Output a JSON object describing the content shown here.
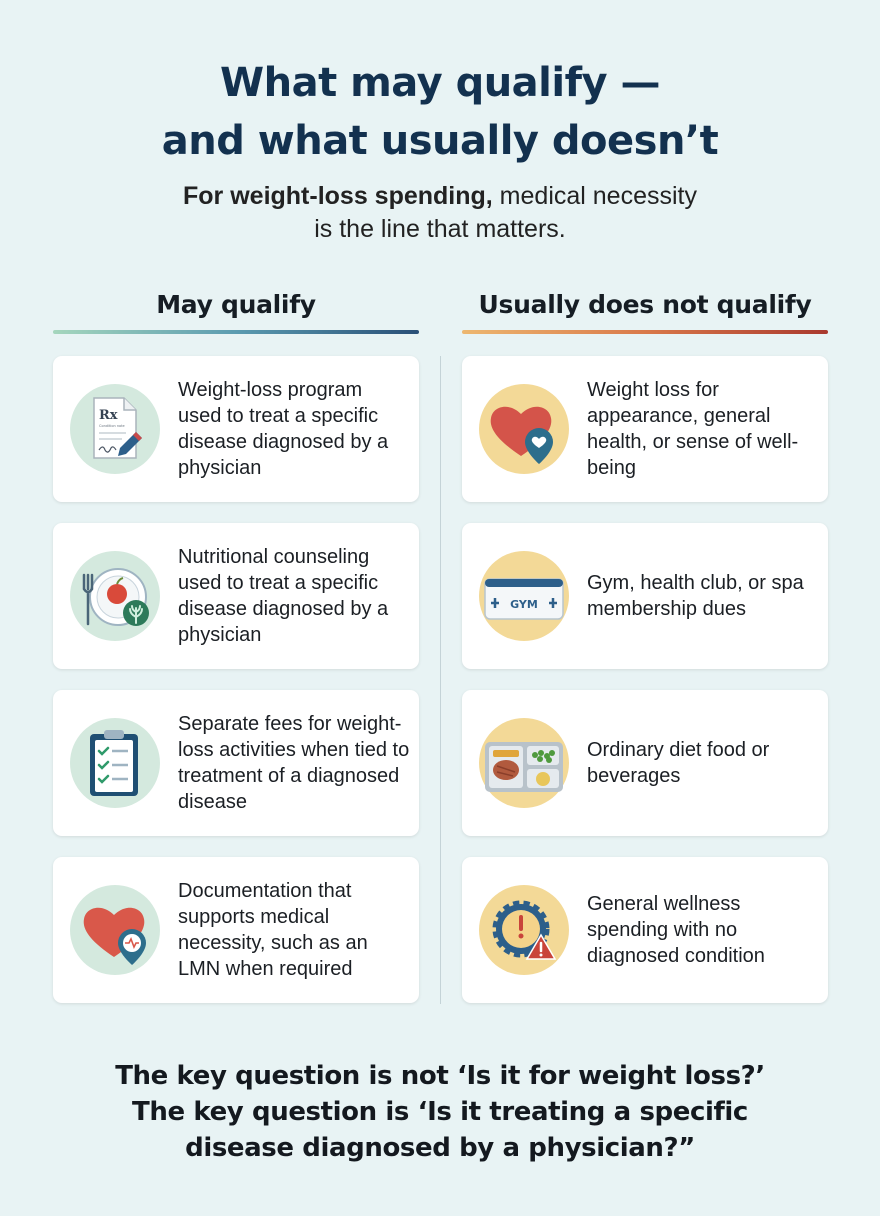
{
  "header": {
    "title_line1": "What may qualify —",
    "title_line2": "and what usually doesn’t",
    "subtitle_bold": "For weight-loss spending,",
    "subtitle_rest": " medical necessity",
    "subtitle_line2": "is the line that matters."
  },
  "left_column": {
    "heading": "May qualify",
    "items": [
      {
        "icon": "prescription-icon",
        "text": "Weight-loss program used to treat a specific disease diagnosed by a physician"
      },
      {
        "icon": "nutrition-plate-icon",
        "text": "Nutritional counseling used to treat a specific disease diagnosed by a physician"
      },
      {
        "icon": "clipboard-checklist-icon",
        "text": "Separate fees for weight-loss activities when tied to treatment of a diagnosed disease"
      },
      {
        "icon": "heart-medical-pin-icon",
        "text": "Documentation that supports medical necessity, such as an LMN when required"
      }
    ],
    "accent_colors": [
      "#a5d6bd",
      "#294f77"
    ]
  },
  "right_column": {
    "heading": "Usually does not qualify",
    "items": [
      {
        "icon": "heart-pin-icon",
        "text": "Weight loss for appearance, general health, or sense of well-being"
      },
      {
        "icon": "gym-card-icon",
        "text": "Gym, health club, or spa membership dues",
        "icon_label": "GYM"
      },
      {
        "icon": "diet-tray-icon",
        "text": "Ordinary diet food or beverages"
      },
      {
        "icon": "warning-badge-icon",
        "text": "General wellness spending with no diagnosed condition"
      }
    ],
    "accent_colors": [
      "#edb770",
      "#a9392e"
    ]
  },
  "prescription_icon_text": {
    "rx": "Rx",
    "note": "Condition note"
  },
  "footer": {
    "line1": "The key question is not ‘Is it for weight loss?’",
    "line2": "The key question is ‘Is it treating a specific",
    "line3": "disease diagnosed by a physician?”"
  }
}
